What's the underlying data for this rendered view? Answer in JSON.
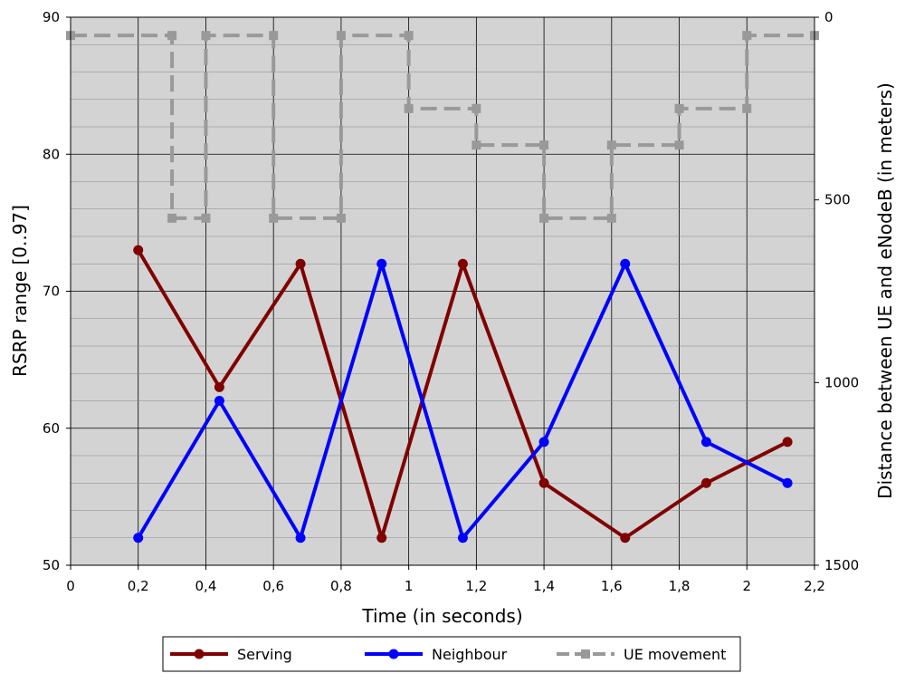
{
  "chart_data": {
    "type": "line",
    "title": "",
    "xlabel": "Time (in seconds)",
    "ylabel": "RSRP range [0..97]",
    "y2label": "Distance between UE and eNodeB (in meters)",
    "xlim": [
      0,
      2.2
    ],
    "ylim": [
      50,
      90
    ],
    "y2lim": [
      0,
      1500
    ],
    "y2_inverted": true,
    "grid": true,
    "legend_position": "bottom",
    "x_ticks": [
      "0",
      "0,2",
      "0,4",
      "0,6",
      "0,8",
      "1",
      "1,2",
      "1,4",
      "1,6",
      "1,8",
      "2",
      "2,2"
    ],
    "y_ticks": [
      "50",
      "60",
      "70",
      "80",
      "90"
    ],
    "y2_ticks": [
      "0",
      "500",
      "1000",
      "1500"
    ],
    "series": [
      {
        "name": "Serving",
        "axis": "left",
        "color": "#800000",
        "marker": "circle",
        "line": "solid",
        "x": [
          0.2,
          0.44,
          0.68,
          0.92,
          1.16,
          1.4,
          1.64,
          1.88,
          2.12
        ],
        "values": [
          73,
          63,
          72,
          52,
          72,
          56,
          52,
          56,
          59
        ]
      },
      {
        "name": "Neighbour",
        "axis": "left",
        "color": "#0000ff",
        "marker": "circle",
        "line": "solid",
        "x": [
          0.2,
          0.44,
          0.68,
          0.92,
          1.16,
          1.4,
          1.64,
          1.88,
          2.12
        ],
        "values": [
          52,
          62,
          52,
          72,
          52,
          59,
          72,
          59,
          56
        ]
      },
      {
        "name": "UE movement",
        "axis": "right",
        "color": "#999999",
        "marker": "square",
        "line": "dashed",
        "x": [
          0,
          0.3,
          0.3,
          0.4,
          0.4,
          0.6,
          0.6,
          0.8,
          0.8,
          1.0,
          1.0,
          1.2,
          1.2,
          1.4,
          1.4,
          1.6,
          1.6,
          1.8,
          1.8,
          2.0,
          2.0,
          2.2
        ],
        "values": [
          50,
          50,
          550,
          550,
          50,
          50,
          550,
          550,
          50,
          50,
          250,
          250,
          350,
          350,
          550,
          550,
          350,
          350,
          250,
          250,
          50,
          50
        ]
      }
    ]
  }
}
